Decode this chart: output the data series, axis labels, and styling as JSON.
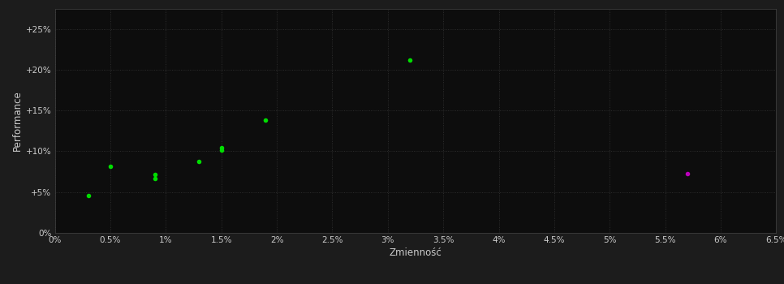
{
  "xlabel": "Zmienność",
  "ylabel": "Performance",
  "background_color": "#1c1c1c",
  "plot_bg_color": "#0d0d0d",
  "grid_color": "#444444",
  "text_color": "#cccccc",
  "green_color": "#00dd00",
  "magenta_color": "#bb00bb",
  "green_points": [
    [
      0.003,
      0.046
    ],
    [
      0.005,
      0.082
    ],
    [
      0.009,
      0.072
    ],
    [
      0.009,
      0.067
    ],
    [
      0.013,
      0.088
    ],
    [
      0.015,
      0.101
    ],
    [
      0.015,
      0.104
    ],
    [
      0.019,
      0.138
    ],
    [
      0.032,
      0.212
    ]
  ],
  "magenta_points": [
    [
      0.057,
      0.073
    ]
  ],
  "xlim": [
    0.0,
    0.065
  ],
  "ylim": [
    0.0,
    0.275
  ],
  "xticks": [
    0.0,
    0.005,
    0.01,
    0.015,
    0.02,
    0.025,
    0.03,
    0.035,
    0.04,
    0.045,
    0.05,
    0.055,
    0.06,
    0.065
  ],
  "yticks": [
    0.0,
    0.05,
    0.1,
    0.15,
    0.2,
    0.25
  ],
  "ytick_labels": [
    "0%",
    "+5%",
    "+10%",
    "+15%",
    "+20%",
    "+25%"
  ],
  "xtick_labels": [
    "0%",
    "0.5%",
    "1%",
    "1.5%",
    "2%",
    "2.5%",
    "3%",
    "3.5%",
    "4%",
    "4.5%",
    "5%",
    "5.5%",
    "6%",
    "6.5%"
  ],
  "marker_size": 4
}
